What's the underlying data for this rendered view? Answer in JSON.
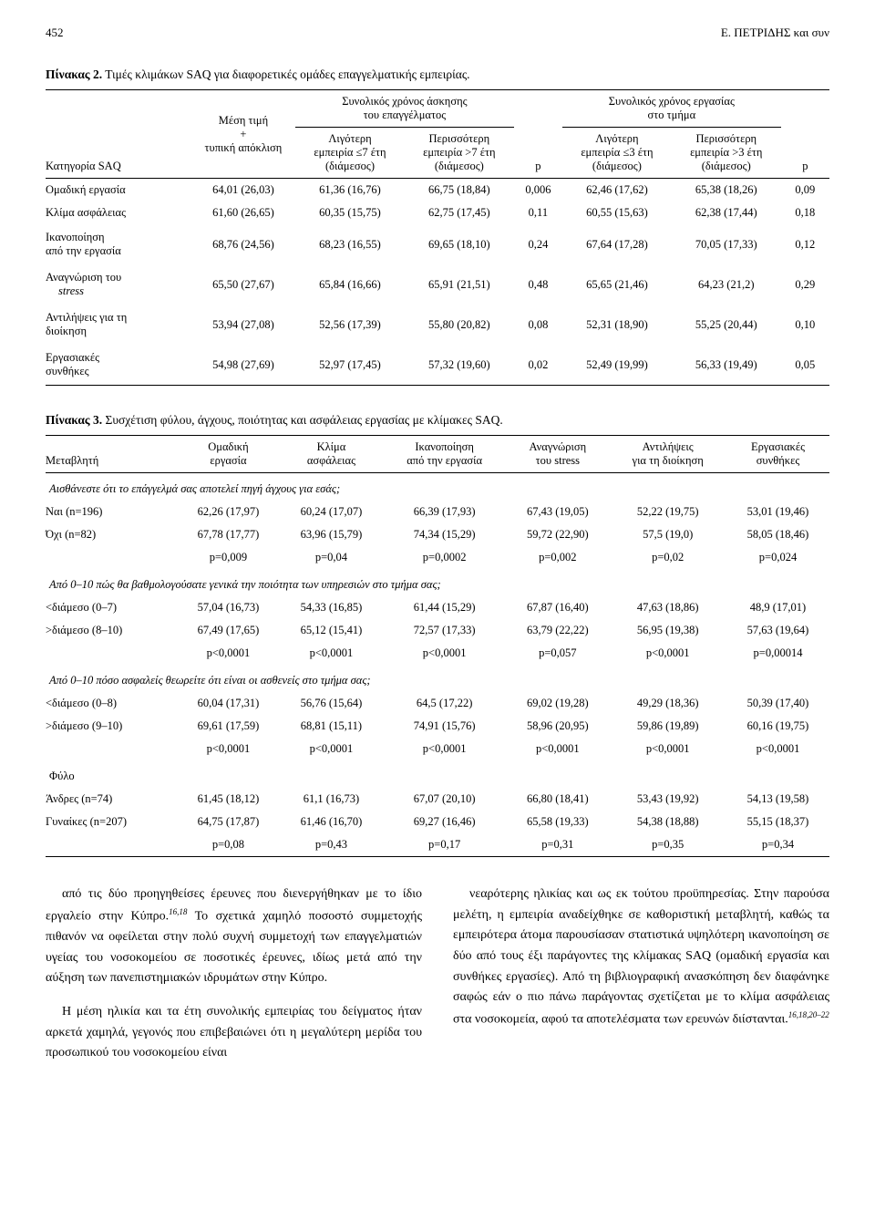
{
  "page_number": "452",
  "author_short": "Ε. ΠΕΤΡΙΔΗΣ και συν",
  "table2": {
    "caption_label": "Πίνακας 2.",
    "caption_text": "Τιμές κλιμάκων SAQ για διαφορετικές ομάδες επαγγελματικής εμπειρίας.",
    "group1": "Συνολικός χρόνος άσκησης του επαγγέλματος",
    "group2": "Συνολικός χρόνος εργασίας στο τμήμα",
    "col0": "Κατηγορία SAQ",
    "col1": "Μέση τιμή + τυπική απόκλιση",
    "col2": "Λιγότερη εμπειρία ≤7 έτη (διάμεσος)",
    "col3": "Περισσότερη εμπειρία >7 έτη (διάμεσος)",
    "col4": "p",
    "col5": "Λιγότερη εμπειρία ≤3 έτη (διάμεσος)",
    "col6": "Περισσότερη εμπειρία >3 έτη (διάμεσος)",
    "col7": "p",
    "rows": [
      {
        "l": "Ομαδική εργασία",
        "c1": "64,01 (26,03)",
        "c2": "61,36 (16,76)",
        "c3": "66,75 (18,84)",
        "c4": "0,006",
        "c5": "62,46 (17,62)",
        "c6": "65,38 (18,26)",
        "c7": "0,09"
      },
      {
        "l": "Κλίμα ασφάλειας",
        "c1": "61,60 (26,65)",
        "c2": "60,35 (15,75)",
        "c3": "62,75 (17,45)",
        "c4": "0,11",
        "c5": "60,55 (15,63)",
        "c6": "62,38 (17,44)",
        "c7": "0,18"
      },
      {
        "l": "Ικανοποίηση από την εργασία",
        "c1": "68,76 (24,56)",
        "c2": "68,23 (16,55)",
        "c3": "69,65 (18,10)",
        "c4": "0,24",
        "c5": "67,64 (17,28)",
        "c6": "70,05 (17,33)",
        "c7": "0,12"
      },
      {
        "l": "Αναγνώριση του stress",
        "sub": "stress",
        "c1": "65,50 (27,67)",
        "c2": "65,84 (16,66)",
        "c3": "65,91 (21,51)",
        "c4": "0,48",
        "c5": "65,65 (21,46)",
        "c6": "64,23 (21,2)",
        "c7": "0,29"
      },
      {
        "l": "Αντιλήψεις για τη διοίκηση",
        "c1": "53,94 (27,08)",
        "c2": "52,56 (17,39)",
        "c3": "55,80 (20,82)",
        "c4": "0,08",
        "c5": "52,31 (18,90)",
        "c6": "55,25 (20,44)",
        "c7": "0,10"
      },
      {
        "l": "Εργασιακές συνθήκες",
        "c1": "54,98 (27,69)",
        "c2": "52,97 (17,45)",
        "c3": "57,32 (19,60)",
        "c4": "0,02",
        "c5": "52,49 (19,99)",
        "c6": "56,33 (19,49)",
        "c7": "0,05"
      }
    ]
  },
  "table3": {
    "caption_label": "Πίνακας 3.",
    "caption_text": "Συσχέτιση φύλου, άγχους, ποιότητας και ασφάλειας εργασίας με κλίμακες SAQ.",
    "col0": "Μεταβλητή",
    "col1": "Ομαδική εργασία",
    "col2": "Κλίμα ασφάλειας",
    "col3": "Ικανοποίηση από την εργασία",
    "col4": "Αναγνώριση του stress",
    "col5": "Αντιλήψεις για τη διοίκηση",
    "col6": "Εργασιακές συνθήκες",
    "q1": "Αισθάνεστε ότι το επάγγελμά σας αποτελεί πηγή άγχους για εσάς;",
    "q2": "Από 0–10 πώς θα βαθμολογούσατε γενικά την ποιότητα των υπηρεσιών στο τμήμα σας;",
    "q3": "Από 0–10 πόσο ασφαλείς θεωρείτε ότι είναι οι ασθενείς στο τμήμα σας;",
    "q4": "Φύλο",
    "g1": [
      {
        "l": "Ναι (n=196)",
        "c": [
          "62,26 (17,97)",
          "60,24 (17,07)",
          "66,39 (17,93)",
          "67,43 (19,05)",
          "52,22 (19,75)",
          "53,01 (19,46)"
        ]
      },
      {
        "l": "Όχι (n=82)",
        "c": [
          "67,78 (17,77)",
          "63,96 (15,79)",
          "74,34 (15,29)",
          "59,72 (22,90)",
          "57,5 (19,0)",
          "58,05 (18,46)"
        ]
      },
      {
        "l": "",
        "c": [
          "p=0,009",
          "p=0,04",
          "p=0,0002",
          "p=0,002",
          "p=0,02",
          "p=0,024"
        ]
      }
    ],
    "g2": [
      {
        "l": "<διάμεσο (0–7)",
        "c": [
          "57,04 (16,73)",
          "54,33 (16,85)",
          "61,44 (15,29)",
          "67,87 (16,40)",
          "47,63 (18,86)",
          "48,9 (17,01)"
        ]
      },
      {
        "l": ">διάμεσο (8–10)",
        "c": [
          "67,49 (17,65)",
          "65,12 (15,41)",
          "72,57 (17,33)",
          "63,79 (22,22)",
          "56,95 (19,38)",
          "57,63 (19,64)"
        ]
      },
      {
        "l": "",
        "c": [
          "p<0,0001",
          "p<0,0001",
          "p<0,0001",
          "p=0,057",
          "p<0,0001",
          "p=0,00014"
        ]
      }
    ],
    "g3": [
      {
        "l": "<διάμεσο (0–8)",
        "c": [
          "60,04 (17,31)",
          "56,76 (15,64)",
          "64,5 (17,22)",
          "69,02 (19,28)",
          "49,29 (18,36)",
          "50,39 (17,40)"
        ]
      },
      {
        "l": ">διάμεσο (9–10)",
        "c": [
          "69,61 (17,59)",
          "68,81 (15,11)",
          "74,91 (15,76)",
          "58,96 (20,95)",
          "59,86 (19,89)",
          "60,16 (19,75)"
        ]
      },
      {
        "l": "",
        "c": [
          "p<0,0001",
          "p<0,0001",
          "p<0,0001",
          "p<0,0001",
          "p<0,0001",
          "p<0,0001"
        ]
      }
    ],
    "g4": [
      {
        "l": "Άνδρες (n=74)",
        "c": [
          "61,45 (18,12)",
          "61,1 (16,73)",
          "67,07 (20,10)",
          "66,80 (18,41)",
          "53,43 (19,92)",
          "54,13 (19,58)"
        ]
      },
      {
        "l": "Γυναίκες (n=207)",
        "c": [
          "64,75 (17,87)",
          "61,46 (16,70)",
          "69,27 (16,46)",
          "65,58 (19,33)",
          "54,38 (18,88)",
          "55,15 (18,37)"
        ]
      },
      {
        "l": "",
        "c": [
          "p=0,08",
          "p=0,43",
          "p=0,17",
          "p=0,31",
          "p=0,35",
          "p=0,34"
        ]
      }
    ]
  },
  "body": {
    "left": [
      "από τις δύο προηγηθείσες έρευνες που διενεργήθηκαν με το ίδιο εργαλείο στην Κύπρο.¹⁶,¹⁸ Το σχετικά χαμηλό ποσοστό συμμετοχής πιθανόν να οφείλεται στην πολύ συχνή συμμετοχή των επαγγελματιών υγείας του νοσοκομείου σε ποσοτικές έρευνες, ιδίως μετά από την αύξηση των πανεπιστημιακών ιδρυμάτων στην Κύπρο.",
      "Η μέση ηλικία και τα έτη συνολικής εμπειρίας του δείγματος ήταν αρκετά χαμηλά, γεγονός που επιβεβαιώνει ότι η μεγαλύτερη μερίδα του προσωπικού του νοσοκομείου είναι"
    ],
    "right": [
      "νεαρότερης ηλικίας και ως εκ τούτου προϋπηρεσίας. Στην παρούσα μελέτη, η εμπειρία αναδείχθηκε σε καθοριστική μεταβλητή, καθώς τα εμπειρότερα άτομα παρουσίασαν στατιστικά υψηλότερη ικανοποίηση σε δύο από τους έξι παράγοντες της κλίμακας SAQ (ομαδική εργασία και συνθήκες εργασίες). Από τη βιβλιογραφική ανασκόπηση δεν διαφάνηκε σαφώς εάν ο πιο πάνω παράγοντας σχετίζεται με το κλίμα ασφάλειας στα νοσοκομεία, αφού τα αποτελέσματα των ερευνών διίστανται.¹⁶,¹⁸,²⁰–²²"
    ]
  },
  "refs": {
    "r1": "16,18",
    "r2": "16,18,20–22"
  }
}
